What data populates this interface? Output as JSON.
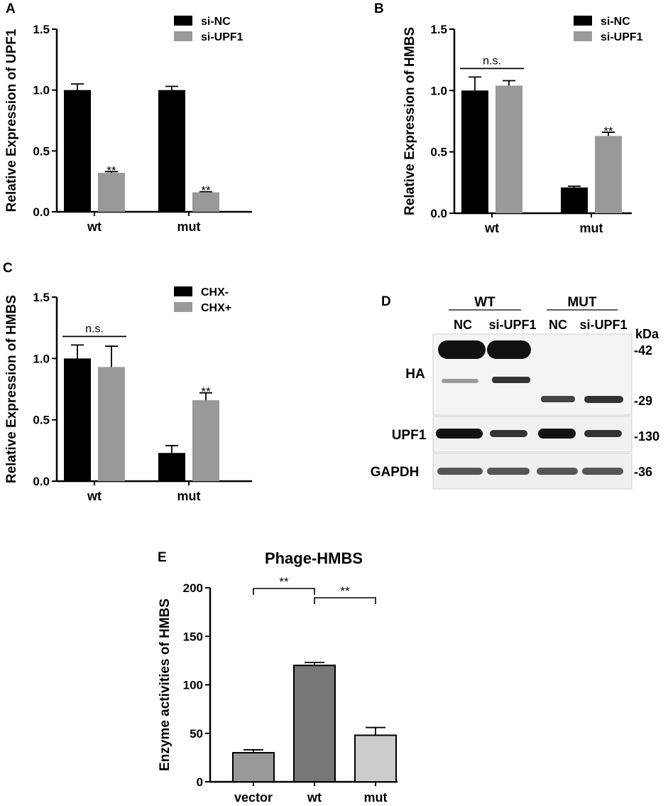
{
  "panels": {
    "A": {
      "letter": "A",
      "chart_data": {
        "type": "bar",
        "categories": [
          "wt",
          "mut"
        ],
        "series": [
          {
            "name": "si-NC",
            "values": [
              1.0,
              1.0
            ],
            "errors": [
              0.05,
              0.03
            ],
            "color": "#000000"
          },
          {
            "name": "si-UPF1",
            "values": [
              0.32,
              0.16
            ],
            "errors": [
              0.01,
              0.005
            ],
            "color": "#999999"
          }
        ],
        "ylabel": "Relative Expression of UPF1",
        "ylim": [
          0,
          1.5
        ],
        "yticks": [
          "0.0",
          "0.5",
          "1.0",
          "1.5"
        ],
        "legend": "top-right",
        "annotations": [
          {
            "text": "**",
            "category": 0,
            "series": 1
          },
          {
            "text": "**",
            "category": 1,
            "series": 1
          }
        ]
      }
    },
    "B": {
      "letter": "B",
      "chart_data": {
        "type": "bar",
        "categories": [
          "wt",
          "mut"
        ],
        "series": [
          {
            "name": "si-NC",
            "values": [
              1.0,
              0.21
            ],
            "errors": [
              0.11,
              0.01
            ],
            "color": "#000000"
          },
          {
            "name": "si-UPF1",
            "values": [
              1.04,
              0.63
            ],
            "errors": [
              0.04,
              0.03
            ],
            "color": "#999999"
          }
        ],
        "ylabel": "Relative Expression of HMBS",
        "ylim": [
          0,
          1.5
        ],
        "yticks": [
          "0.0",
          "0.5",
          "1.0",
          "1.5"
        ],
        "legend": "top-right",
        "annotations": [
          {
            "text": "n.s.",
            "category": 0,
            "bracket": true
          },
          {
            "text": "**",
            "category": 1,
            "series": 1
          }
        ]
      }
    },
    "C": {
      "letter": "C",
      "chart_data": {
        "type": "bar",
        "categories": [
          "wt",
          "mut"
        ],
        "series": [
          {
            "name": "CHX-",
            "values": [
              1.0,
              0.23
            ],
            "errors": [
              0.11,
              0.06
            ],
            "color": "#000000"
          },
          {
            "name": "CHX+",
            "values": [
              0.93,
              0.66
            ],
            "errors": [
              0.17,
              0.06
            ],
            "color": "#999999"
          }
        ],
        "ylabel": "Relative Expression of HMBS",
        "ylim": [
          0,
          1.5
        ],
        "yticks": [
          "0.0",
          "0.5",
          "1.0",
          "1.5"
        ],
        "legend": "top-right",
        "annotations": [
          {
            "text": "n.s.",
            "category": 0,
            "bracket": true
          },
          {
            "text": "**",
            "category": 1,
            "series": 1
          }
        ]
      }
    },
    "E": {
      "letter": "E",
      "chart_data": {
        "type": "bar",
        "title": "Phage-HMBS",
        "categories": [
          "vector",
          "wt",
          "mut"
        ],
        "values": [
          30,
          120,
          48
        ],
        "errors": [
          3,
          3,
          8
        ],
        "colors": [
          "#999999",
          "#777777",
          "#cccccc"
        ],
        "ylabel": "Enzyme activities of HMBS",
        "ylim": [
          0,
          200
        ],
        "yticks": [
          "0",
          "50",
          "100",
          "150",
          "200"
        ],
        "comparisons": [
          {
            "text": "**",
            "from": 0,
            "to": 1
          },
          {
            "text": "**",
            "from": 1,
            "to": 2
          }
        ]
      }
    }
  },
  "blot": {
    "letter": "D",
    "groups": [
      "WT",
      "MUT"
    ],
    "lanes": [
      "NC",
      "si-UPF1",
      "NC",
      "si-UPF1"
    ],
    "kda_label": "kDa",
    "rows": [
      "HA",
      "UPF1",
      "GAPDH"
    ],
    "markers": [
      "-42",
      "-29",
      "-130",
      "-36"
    ]
  }
}
